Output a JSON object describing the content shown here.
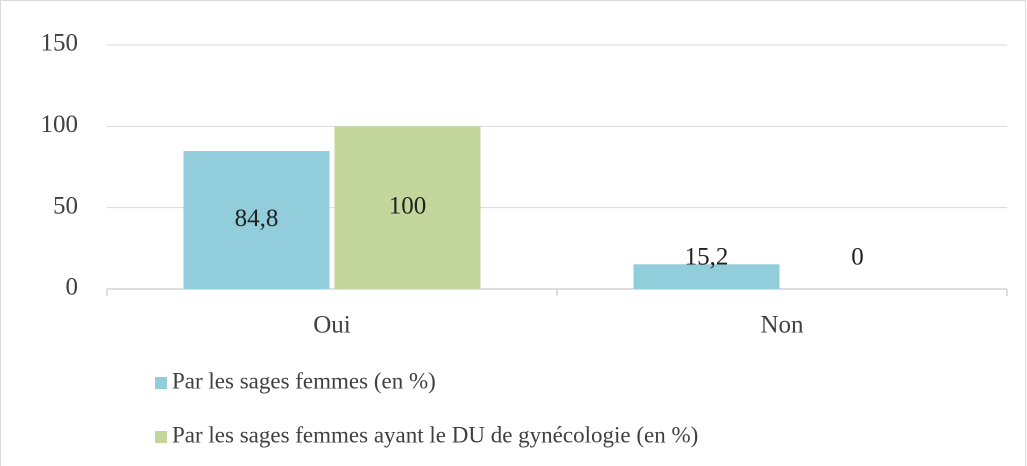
{
  "chart_data": {
    "type": "bar",
    "categories": [
      "Oui",
      "Non"
    ],
    "series": [
      {
        "name": "Par les sages femmes (en %)",
        "color": "#92cddc",
        "values": [
          84.8,
          15.2
        ],
        "value_labels": [
          "84,8",
          "15,2"
        ]
      },
      {
        "name": "Par les sages femmes ayant le DU de gynécologie (en %)",
        "color": "#c3d69b",
        "values": [
          100,
          0
        ]
      }
    ],
    "ylim": [
      0,
      150
    ],
    "yticks": [
      0,
      50,
      100,
      150
    ],
    "grid": true,
    "legend": "bottom"
  }
}
